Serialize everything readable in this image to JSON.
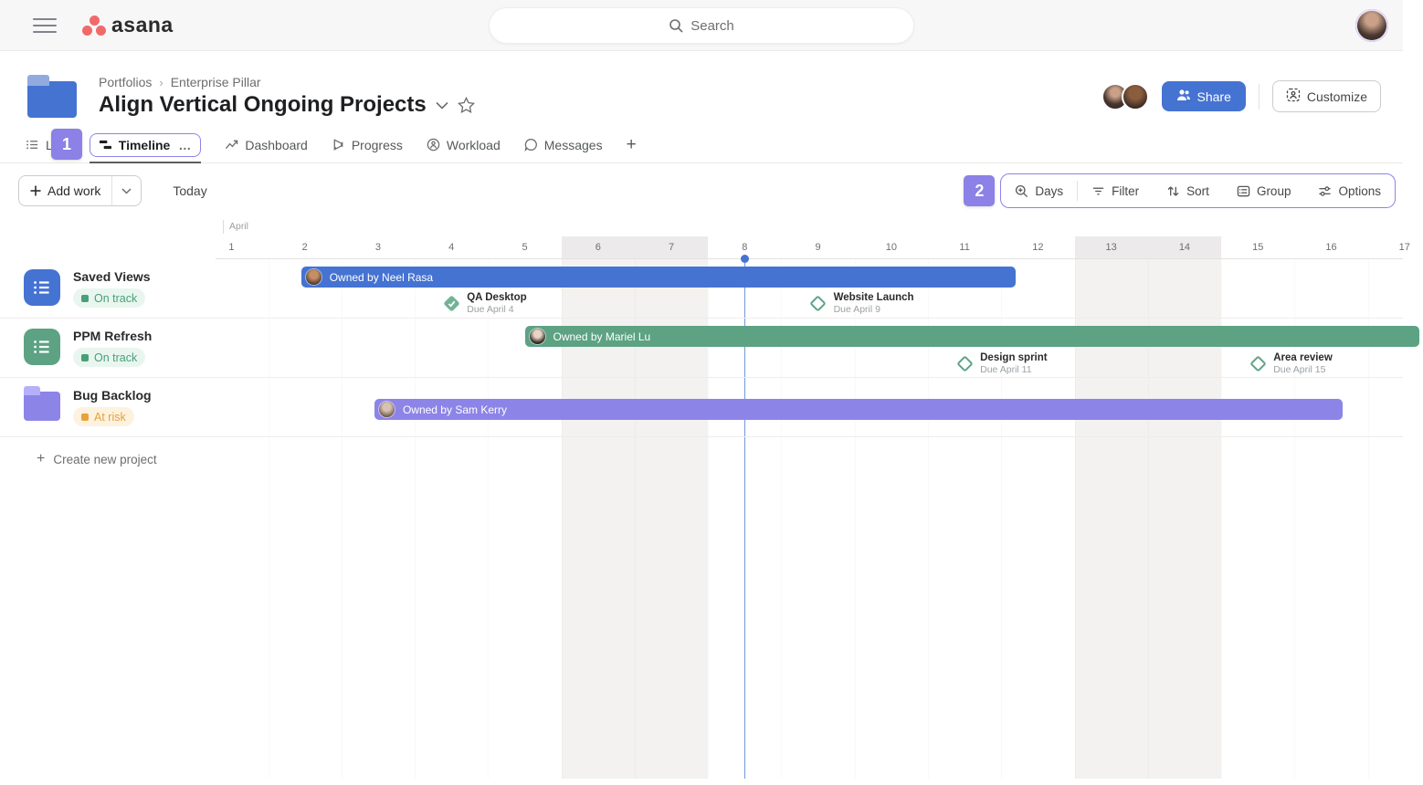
{
  "topbar": {
    "logo_text": "asana",
    "search_placeholder": "Search"
  },
  "header": {
    "breadcrumb_items": [
      "Portfolios",
      "Enterprise Pillar"
    ],
    "title": "Align Vertical Ongoing Projects",
    "share_label": "Share",
    "customize_label": "Customize"
  },
  "tabs": {
    "badge": "1",
    "items": [
      {
        "label": "List",
        "icon": "list-tab",
        "active": false
      },
      {
        "label": "Timeline",
        "icon": "timeline-tab",
        "active": true,
        "more": "…"
      },
      {
        "label": "Dashboard",
        "icon": "dashboard-tab",
        "active": false
      },
      {
        "label": "Progress",
        "icon": "progress-tab",
        "active": false
      },
      {
        "label": "Workload",
        "icon": "workload-tab",
        "active": false
      },
      {
        "label": "Messages",
        "icon": "messages-tab",
        "active": false
      }
    ],
    "add_tab_label": "+"
  },
  "toolbar": {
    "add_work_label": "Add work",
    "today_label": "Today",
    "badge": "2",
    "view_controls": [
      {
        "label": "Days",
        "icon": "zoom-days"
      },
      {
        "label": "Filter",
        "icon": "filter"
      },
      {
        "label": "Sort",
        "icon": "sort"
      },
      {
        "label": "Group",
        "icon": "group"
      },
      {
        "label": "Options",
        "icon": "options"
      }
    ]
  },
  "timeline": {
    "month_label": "April",
    "days": [
      1,
      2,
      3,
      4,
      5,
      6,
      7,
      8,
      9,
      10,
      11,
      12,
      13,
      14,
      15,
      16,
      17
    ],
    "weekend_days": [
      6,
      7,
      13,
      14
    ],
    "today_day": 8,
    "rows": [
      {
        "name": "Saved Views",
        "status": "On track",
        "status_type": "on-track",
        "icon": "list",
        "icon_color": "#4573d2",
        "bar": {
          "label": "Owned by Neel Rasa",
          "color": "#4573d2",
          "start_day": 2.45,
          "end_day": 12.2,
          "avatar": "av-neel"
        },
        "milestones": [
          {
            "name": "QA Desktop",
            "due": "Due April 4",
            "day": 4,
            "complete": true
          },
          {
            "name": "Website Launch",
            "due": "Due April 9",
            "day": 9,
            "complete": false
          }
        ]
      },
      {
        "name": "PPM Refresh",
        "status": "On track",
        "status_type": "on-track",
        "icon": "list",
        "icon_color": "#5da283",
        "bar": {
          "label": "Owned by Mariel Lu",
          "color": "#5da283",
          "start_day": 5.5,
          "end_day": 17.7,
          "avatar": "av-mariel"
        },
        "milestones": [
          {
            "name": "Design sprint",
            "due": "Due April 11",
            "day": 11,
            "complete": false
          },
          {
            "name": "Area review",
            "due": "Due April 15",
            "day": 15,
            "complete": false
          }
        ]
      },
      {
        "name": "Bug Backlog",
        "status": "At risk",
        "status_type": "at-risk",
        "icon": "folder",
        "icon_color": "#8d84e8",
        "bar": {
          "label": "Owned by Sam Kerry",
          "color": "#8d84e8",
          "start_day": 3.45,
          "end_day": 16.66,
          "avatar": "av-sam"
        },
        "milestones": []
      }
    ],
    "create_project_label": "Create new project"
  },
  "colors": {
    "accent_blue": "#4573d2",
    "green": "#5da283",
    "purple": "#8d84e8",
    "logo_red": "#f06a6a",
    "today_line": "#4573d2",
    "on_track": "#47a077",
    "at_risk": "#e9a23a"
  }
}
